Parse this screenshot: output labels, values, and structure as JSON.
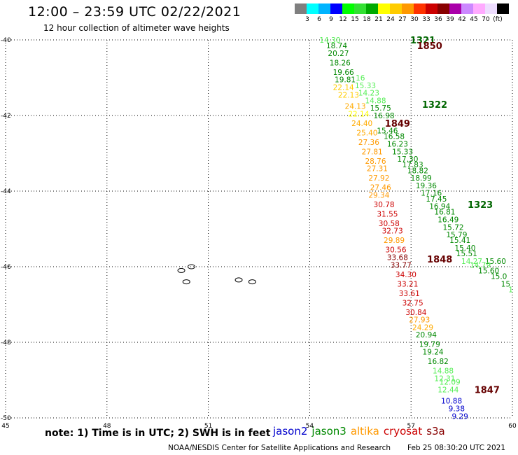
{
  "header": {
    "title": "12:00 – 23:59 UTC 02/22/2021",
    "subtitle": "12 hour collection of altimeter wave heights"
  },
  "scale": {
    "colors": [
      "#7f7f7f",
      "#00ffff",
      "#00b4ff",
      "#0000ff",
      "#00ff00",
      "#33e133",
      "#00aa00",
      "#ffff00",
      "#ffcc00",
      "#ff9900",
      "#ff3300",
      "#cc0000",
      "#880000",
      "#aa00aa",
      "#cc88ff",
      "#ffaaff",
      "#eeddff",
      "#000000"
    ],
    "labels": [
      "3",
      "6",
      "9",
      "12",
      "15",
      "18",
      "21",
      "24",
      "27",
      "30",
      "33",
      "36",
      "39",
      "42",
      "45",
      "70",
      "(ft)"
    ]
  },
  "map": {
    "lon_min": 45,
    "lon_max": 60,
    "lat_min": -50,
    "lat_max": -40,
    "x_ticks": [
      45,
      48,
      51,
      54,
      57,
      60
    ],
    "y_ticks": [
      -40,
      -42,
      -44,
      -46,
      -48,
      -50
    ],
    "track_labels": [
      {
        "text": "1321",
        "lon": 57.35,
        "lat": -40.0,
        "color": "#006600"
      },
      {
        "text": "1850",
        "lon": 57.55,
        "lat": -40.15,
        "color": "#660000"
      },
      {
        "text": "1322",
        "lon": 57.7,
        "lat": -41.7,
        "color": "#006600"
      },
      {
        "text": "1849",
        "lon": 56.6,
        "lat": -42.2,
        "color": "#660000"
      },
      {
        "text": "1323",
        "lon": 59.05,
        "lat": -44.35,
        "color": "#006600"
      },
      {
        "text": "1848",
        "lon": 57.85,
        "lat": -45.8,
        "color": "#660000"
      },
      {
        "text": "1847",
        "lon": 59.25,
        "lat": -49.25,
        "color": "#660000"
      }
    ],
    "points": [
      {
        "v": "14.30",
        "lon": 54.6,
        "lat": -40.0,
        "c": "#55ee55"
      },
      {
        "v": "18.74",
        "lon": 54.8,
        "lat": -40.15,
        "c": "#008800"
      },
      {
        "v": "20.27",
        "lon": 54.85,
        "lat": -40.35,
        "c": "#008800"
      },
      {
        "v": "18.26",
        "lon": 54.9,
        "lat": -40.6,
        "c": "#008800"
      },
      {
        "v": "19.66",
        "lon": 55.0,
        "lat": -40.85,
        "c": "#008800"
      },
      {
        "v": "19.81",
        "lon": 55.05,
        "lat": -41.05,
        "c": "#008800"
      },
      {
        "v": "16",
        "lon": 55.5,
        "lat": -41.0,
        "c": "#55ee55"
      },
      {
        "v": "22.14",
        "lon": 55.0,
        "lat": -41.25,
        "c": "#ffcc00"
      },
      {
        "v": "15.33",
        "lon": 55.65,
        "lat": -41.2,
        "c": "#55ee55"
      },
      {
        "v": "22.13",
        "lon": 55.15,
        "lat": -41.45,
        "c": "#ffcc00"
      },
      {
        "v": "14.23",
        "lon": 55.75,
        "lat": -41.4,
        "c": "#55ee55"
      },
      {
        "v": "14.88",
        "lon": 55.95,
        "lat": -41.6,
        "c": "#55ee55"
      },
      {
        "v": "24.13",
        "lon": 55.35,
        "lat": -41.75,
        "c": "#ffaa00"
      },
      {
        "v": "15.75",
        "lon": 56.1,
        "lat": -41.8,
        "c": "#008800"
      },
      {
        "v": "22.14",
        "lon": 55.45,
        "lat": -41.95,
        "c": "#ffff00"
      },
      {
        "v": "16.98",
        "lon": 56.2,
        "lat": -42.0,
        "c": "#008800"
      },
      {
        "v": "24.40",
        "lon": 55.55,
        "lat": -42.2,
        "c": "#ffaa00"
      },
      {
        "v": "15.46",
        "lon": 56.3,
        "lat": -42.4,
        "c": "#008800"
      },
      {
        "v": "25.40",
        "lon": 55.7,
        "lat": -42.45,
        "c": "#ffaa00"
      },
      {
        "v": "16.58",
        "lon": 56.5,
        "lat": -42.55,
        "c": "#008800"
      },
      {
        "v": "27.36",
        "lon": 55.75,
        "lat": -42.7,
        "c": "#ff9900"
      },
      {
        "v": "16.23",
        "lon": 56.6,
        "lat": -42.75,
        "c": "#008800"
      },
      {
        "v": "27.81",
        "lon": 55.85,
        "lat": -42.95,
        "c": "#ff9900"
      },
      {
        "v": "15.33",
        "lon": 56.75,
        "lat": -42.95,
        "c": "#008800"
      },
      {
        "v": "17.30",
        "lon": 56.9,
        "lat": -43.15,
        "c": "#008800"
      },
      {
        "v": "28.76",
        "lon": 55.95,
        "lat": -43.2,
        "c": "#ff9900"
      },
      {
        "v": "17.83",
        "lon": 57.05,
        "lat": -43.3,
        "c": "#008800"
      },
      {
        "v": "27.31",
        "lon": 56.0,
        "lat": -43.4,
        "c": "#ff9900"
      },
      {
        "v": "18.82",
        "lon": 57.2,
        "lat": -43.45,
        "c": "#008800"
      },
      {
        "v": "27.92",
        "lon": 56.05,
        "lat": -43.65,
        "c": "#ff9900"
      },
      {
        "v": "18.99",
        "lon": 57.3,
        "lat": -43.65,
        "c": "#008800"
      },
      {
        "v": "19.36",
        "lon": 57.45,
        "lat": -43.85,
        "c": "#008800"
      },
      {
        "v": "27.46",
        "lon": 56.1,
        "lat": -43.9,
        "c": "#ff9900"
      },
      {
        "v": "17.16",
        "lon": 57.6,
        "lat": -44.05,
        "c": "#008800"
      },
      {
        "v": "29.34",
        "lon": 56.05,
        "lat": -44.1,
        "c": "#ff9900"
      },
      {
        "v": "17.45",
        "lon": 57.75,
        "lat": -44.2,
        "c": "#008800"
      },
      {
        "v": "30.78",
        "lon": 56.2,
        "lat": -44.35,
        "c": "#cc0000"
      },
      {
        "v": "16.94",
        "lon": 57.85,
        "lat": -44.4,
        "c": "#008800"
      },
      {
        "v": "31.55",
        "lon": 56.3,
        "lat": -44.6,
        "c": "#cc0000"
      },
      {
        "v": "16.81",
        "lon": 58.0,
        "lat": -44.55,
        "c": "#008800"
      },
      {
        "v": "16.49",
        "lon": 58.1,
        "lat": -44.75,
        "c": "#008800"
      },
      {
        "v": "30.58",
        "lon": 56.35,
        "lat": -44.85,
        "c": "#cc0000"
      },
      {
        "v": "15.72",
        "lon": 58.25,
        "lat": -44.95,
        "c": "#008800"
      },
      {
        "v": "32.73",
        "lon": 56.45,
        "lat": -45.05,
        "c": "#cc0000"
      },
      {
        "v": "15.79",
        "lon": 58.35,
        "lat": -45.15,
        "c": "#008800"
      },
      {
        "v": "29.89",
        "lon": 56.5,
        "lat": -45.3,
        "c": "#ff9900"
      },
      {
        "v": "15.41",
        "lon": 58.45,
        "lat": -45.3,
        "c": "#008800"
      },
      {
        "v": "15.40",
        "lon": 58.6,
        "lat": -45.5,
        "c": "#008800"
      },
      {
        "v": "30.56",
        "lon": 56.55,
        "lat": -45.55,
        "c": "#cc0000"
      },
      {
        "v": "15.51",
        "lon": 58.65,
        "lat": -45.65,
        "c": "#008800"
      },
      {
        "v": "33.68",
        "lon": 56.6,
        "lat": -45.75,
        "c": "#880000"
      },
      {
        "v": "15.60",
        "lon": 59.5,
        "lat": -45.85,
        "c": "#008800"
      },
      {
        "v": "14.27",
        "lon": 58.8,
        "lat": -45.85,
        "c": "#55ee55"
      },
      {
        "v": "33.77",
        "lon": 56.7,
        "lat": -45.95,
        "c": "#880000"
      },
      {
        "v": "14.79",
        "lon": 59.05,
        "lat": -45.95,
        "c": "#55ee55"
      },
      {
        "v": "15.60",
        "lon": 59.3,
        "lat": -46.1,
        "c": "#008800"
      },
      {
        "v": "34.30",
        "lon": 56.85,
        "lat": -46.2,
        "c": "#cc0000"
      },
      {
        "v": "15.0",
        "lon": 59.6,
        "lat": -46.25,
        "c": "#008800"
      },
      {
        "v": "33.21",
        "lon": 56.9,
        "lat": -46.45,
        "c": "#cc0000"
      },
      {
        "v": "15",
        "lon": 59.8,
        "lat": -46.45,
        "c": "#008800"
      },
      {
        "v": "1",
        "lon": 59.95,
        "lat": -46.6,
        "c": "#55ee55"
      },
      {
        "v": "33.61",
        "lon": 56.95,
        "lat": -46.7,
        "c": "#cc0000"
      },
      {
        "v": "32.75",
        "lon": 57.05,
        "lat": -46.95,
        "c": "#cc0000"
      },
      {
        "v": "30.84",
        "lon": 57.15,
        "lat": -47.2,
        "c": "#cc0000"
      },
      {
        "v": "27.93",
        "lon": 57.25,
        "lat": -47.4,
        "c": "#ff9900"
      },
      {
        "v": "24.29",
        "lon": 57.35,
        "lat": -47.6,
        "c": "#ffaa00"
      },
      {
        "v": "20.94",
        "lon": 57.45,
        "lat": -47.8,
        "c": "#008800"
      },
      {
        "v": "19.79",
        "lon": 57.55,
        "lat": -48.05,
        "c": "#008800"
      },
      {
        "v": "19.24",
        "lon": 57.65,
        "lat": -48.25,
        "c": "#008800"
      },
      {
        "v": "16.82",
        "lon": 57.8,
        "lat": -48.5,
        "c": "#008800"
      },
      {
        "v": "14.88",
        "lon": 57.95,
        "lat": -48.75,
        "c": "#55ee55"
      },
      {
        "v": "12.31",
        "lon": 58.0,
        "lat": -48.95,
        "c": "#55ee55"
      },
      {
        "v": "12.09",
        "lon": 58.15,
        "lat": -49.05,
        "c": "#55ee55"
      },
      {
        "v": "12.44",
        "lon": 58.1,
        "lat": -49.25,
        "c": "#55ee55"
      },
      {
        "v": "10.88",
        "lon": 58.2,
        "lat": -49.55,
        "c": "#0000cc"
      },
      {
        "v": "9.38",
        "lon": 58.35,
        "lat": -49.75,
        "c": "#0000cc"
      },
      {
        "v": "9.29",
        "lon": 58.45,
        "lat": -49.95,
        "c": "#0000cc"
      }
    ],
    "islands": [
      {
        "lon": 50.2,
        "lat": -46.1
      },
      {
        "lon": 50.5,
        "lat": -46.0
      },
      {
        "lon": 50.35,
        "lat": -46.4
      },
      {
        "lon": 51.9,
        "lat": -46.35
      },
      {
        "lon": 52.3,
        "lat": -46.4
      }
    ]
  },
  "footer": {
    "note": "note: 1) Time is in UTC; 2) SWH is in feet",
    "legend": [
      {
        "name": "jason2",
        "color": "#0000cc"
      },
      {
        "name": "jason3",
        "color": "#008800"
      },
      {
        "name": "altika",
        "color": "#ff9900"
      },
      {
        "name": "cryosat",
        "color": "#cc0000"
      },
      {
        "name": "s3a",
        "color": "#880000"
      }
    ],
    "credit": "NOAA/NESDIS Center for Satellite Applications and Research",
    "timestamp": "Feb 25 08:30:20 UTC 2021"
  }
}
